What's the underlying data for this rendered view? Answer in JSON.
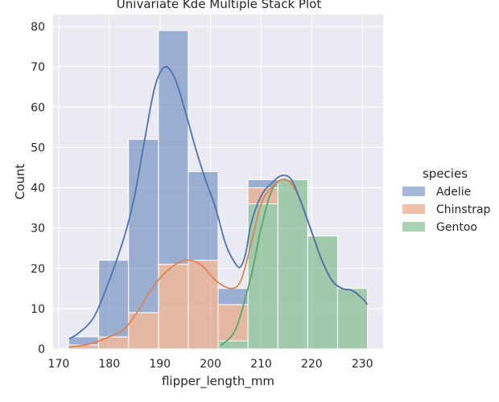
{
  "chart_data": {
    "type": "bar",
    "title": "Univariate Kde Multiple Stack Plot",
    "xlabel": "flipper_length_mm",
    "ylabel": "Count",
    "xlim": [
      168.9,
      234.1
    ],
    "ylim": [
      0,
      83
    ],
    "xticks": [
      170,
      180,
      190,
      200,
      210,
      220,
      230
    ],
    "yticks": [
      0,
      10,
      20,
      30,
      40,
      50,
      60,
      70,
      80
    ],
    "grid": true,
    "background": "#eaeaf2",
    "legend": {
      "title": "species",
      "placement": "right"
    },
    "bin_edges": [
      172,
      177.9,
      183.8,
      189.7,
      195.6,
      201.5,
      207.4,
      213.3,
      219.2,
      225.1,
      231
    ],
    "stacking": "stack",
    "series": [
      {
        "name": "Gentoo",
        "color": "#55a868",
        "values": [
          0,
          0,
          0,
          0,
          0,
          2,
          36,
          42,
          28,
          15
        ]
      },
      {
        "name": "Chinstrap",
        "color": "#dd8452",
        "values": [
          1,
          3,
          9,
          21,
          22,
          9,
          4,
          0,
          0,
          0
        ]
      },
      {
        "name": "Adelie",
        "color": "#4c72b0",
        "values": [
          2,
          19,
          43,
          58,
          22,
          4,
          2,
          0,
          0,
          0
        ]
      }
    ],
    "kde_curves": [
      {
        "name": "Gentoo",
        "color": "#55a868",
        "points": [
          [
            202,
            0.8
          ],
          [
            205,
            5
          ],
          [
            208,
            18
          ],
          [
            210,
            30
          ],
          [
            212,
            39
          ],
          [
            214,
            42
          ],
          [
            216,
            41
          ],
          [
            218,
            36
          ],
          [
            220,
            29
          ],
          [
            222,
            22
          ],
          [
            224,
            17
          ],
          [
            226,
            15
          ],
          [
            228,
            14.5
          ],
          [
            230,
            12.5
          ],
          [
            231,
            11
          ]
        ]
      },
      {
        "name": "Chinstrap",
        "color": "#dd8452",
        "points": [
          [
            172,
            0.5
          ],
          [
            176,
            1.2
          ],
          [
            180,
            3
          ],
          [
            183,
            5
          ],
          [
            186,
            10
          ],
          [
            189,
            16
          ],
          [
            192,
            20
          ],
          [
            195,
            22
          ],
          [
            198,
            21
          ],
          [
            201,
            17
          ],
          [
            204,
            15
          ],
          [
            206,
            17
          ],
          [
            208,
            26
          ],
          [
            210,
            36
          ],
          [
            212,
            40
          ],
          [
            214,
            42
          ],
          [
            216,
            41
          ],
          [
            218,
            36
          ],
          [
            220,
            29
          ],
          [
            222,
            22
          ],
          [
            224,
            17
          ],
          [
            226,
            15
          ],
          [
            228,
            14.5
          ],
          [
            230,
            12.5
          ],
          [
            231,
            11
          ]
        ]
      },
      {
        "name": "Adelie",
        "color": "#4c72b0",
        "points": [
          [
            172,
            2.5
          ],
          [
            174,
            4
          ],
          [
            177,
            8
          ],
          [
            180,
            17
          ],
          [
            183,
            28
          ],
          [
            185,
            38
          ],
          [
            187,
            52
          ],
          [
            189,
            65
          ],
          [
            191,
            70
          ],
          [
            193,
            67
          ],
          [
            195,
            59
          ],
          [
            197,
            50
          ],
          [
            199,
            42
          ],
          [
            201,
            35
          ],
          [
            203,
            26
          ],
          [
            205,
            21
          ],
          [
            206,
            20.5
          ],
          [
            207,
            24
          ],
          [
            208,
            31
          ],
          [
            210,
            38
          ],
          [
            212,
            41
          ],
          [
            214,
            43
          ],
          [
            216,
            42
          ],
          [
            218,
            36
          ],
          [
            220,
            29
          ],
          [
            222,
            22
          ],
          [
            224,
            17
          ],
          [
            226,
            15
          ],
          [
            228,
            14.5
          ],
          [
            230,
            12.5
          ],
          [
            231,
            11
          ]
        ]
      }
    ]
  }
}
